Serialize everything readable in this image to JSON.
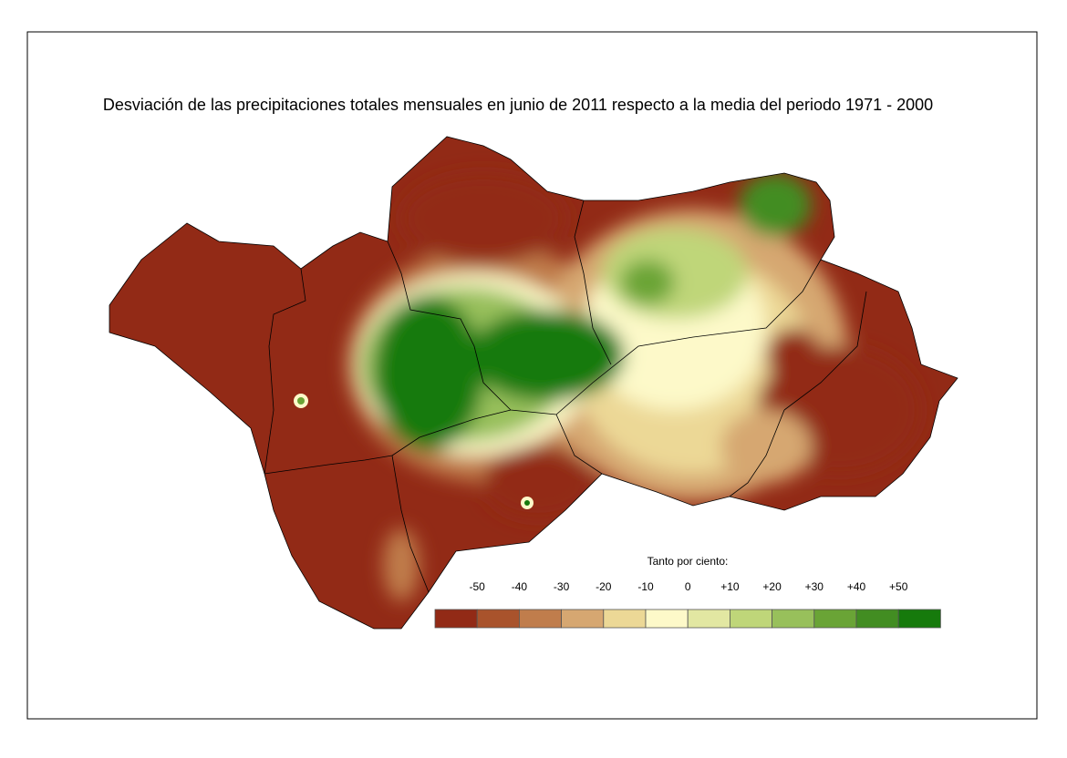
{
  "title": "Desviación de las precipitaciones totales mensuales en junio de 2011 respecto a la media del periodo 1971 - 2000",
  "legend": {
    "title": "Tanto por ciento:",
    "labels": [
      "-50",
      "-40",
      "-30",
      "-20",
      "-10",
      "0",
      "+10",
      "+20",
      "+30",
      "+40",
      "+50"
    ],
    "colors": [
      "#922a16",
      "#a9532c",
      "#c07d4c",
      "#d6a771",
      "#ecd896",
      "#fdf9c9",
      "#e2e7a2",
      "#bfd679",
      "#98c05b",
      "#6aa436",
      "#428d22",
      "#167a0c"
    ]
  }
}
